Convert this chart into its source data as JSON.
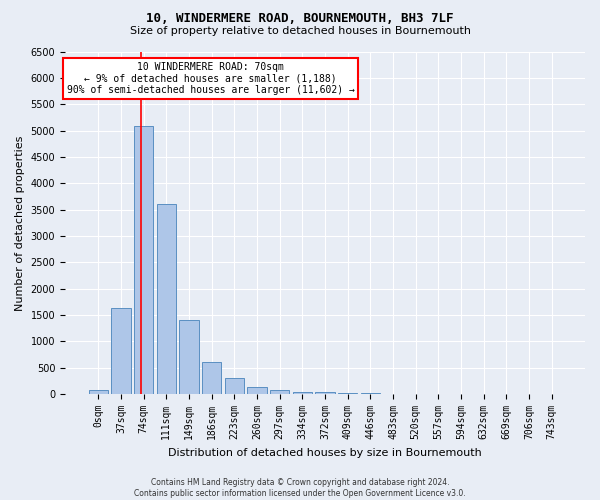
{
  "title": "10, WINDERMERE ROAD, BOURNEMOUTH, BH3 7LF",
  "subtitle": "Size of property relative to detached houses in Bournemouth",
  "xlabel": "Distribution of detached houses by size in Bournemouth",
  "ylabel": "Number of detached properties",
  "footer_line1": "Contains HM Land Registry data © Crown copyright and database right 2024.",
  "footer_line2": "Contains public sector information licensed under the Open Government Licence v3.0.",
  "categories": [
    "0sqm",
    "37sqm",
    "74sqm",
    "111sqm",
    "149sqm",
    "186sqm",
    "223sqm",
    "260sqm",
    "297sqm",
    "334sqm",
    "372sqm",
    "409sqm",
    "446sqm",
    "483sqm",
    "520sqm",
    "557sqm",
    "594sqm",
    "632sqm",
    "669sqm",
    "706sqm",
    "743sqm"
  ],
  "values": [
    75,
    1630,
    5080,
    3600,
    1400,
    620,
    310,
    135,
    80,
    50,
    40,
    30,
    20,
    10,
    8,
    5,
    4,
    3,
    2,
    2,
    2
  ],
  "bar_color": "#aec6e8",
  "bar_edge_color": "#5a8fc2",
  "annotation_text_line1": "10 WINDERMERE ROAD: 70sqm",
  "annotation_text_line2": "← 9% of detached houses are smaller (1,188)",
  "annotation_text_line3": "90% of semi-detached houses are larger (11,602) →",
  "annotation_box_color": "white",
  "annotation_box_edge_color": "red",
  "red_line_color": "red",
  "red_line_x": 1.89,
  "ylim": [
    0,
    6500
  ],
  "yticks": [
    0,
    500,
    1000,
    1500,
    2000,
    2500,
    3000,
    3500,
    4000,
    4500,
    5000,
    5500,
    6000,
    6500
  ],
  "bg_color": "#e8edf5",
  "plot_bg_color": "#e8edf5",
  "title_fontsize": 9,
  "subtitle_fontsize": 8,
  "ylabel_fontsize": 8,
  "xlabel_fontsize": 8,
  "tick_fontsize": 7,
  "footer_fontsize": 5.5
}
